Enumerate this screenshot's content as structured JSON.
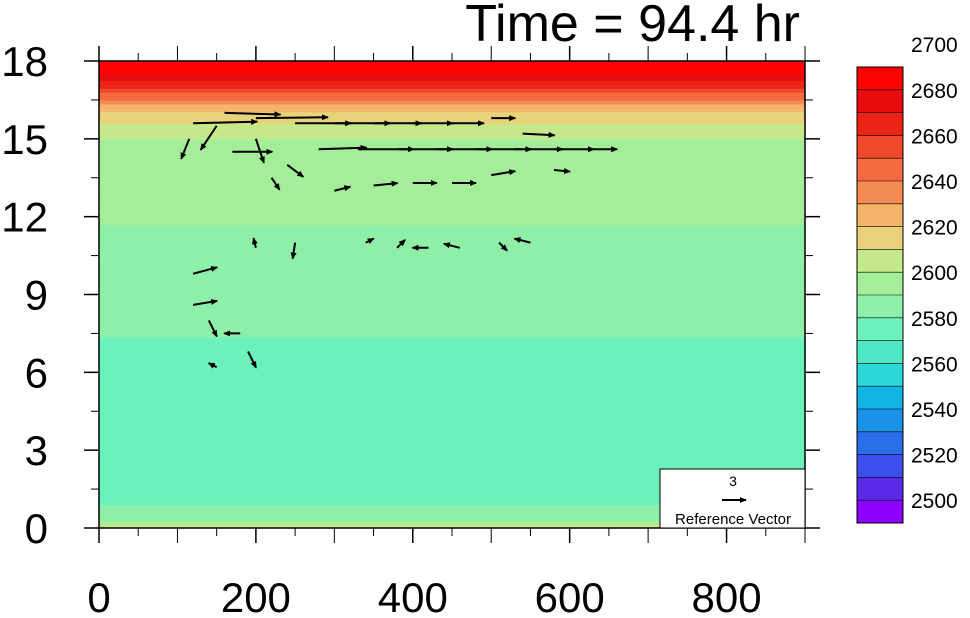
{
  "chart_data": {
    "type": "heatmap",
    "title": "Time = 94.4 hr",
    "xlabel": "",
    "ylabel": "",
    "xlim": [
      0,
      900
    ],
    "ylim": [
      0,
      18
    ],
    "x_ticks": [
      0,
      200,
      400,
      600,
      800
    ],
    "y_ticks": [
      0,
      3,
      6,
      9,
      12,
      15,
      18
    ],
    "colorbar": {
      "levels": [
        2500,
        2520,
        2540,
        2560,
        2580,
        2600,
        2620,
        2640,
        2660,
        2680,
        2700
      ],
      "label_levels": [
        "2500",
        "2520",
        "2540",
        "2560",
        "2580",
        "2600",
        "2620",
        "2640",
        "2660",
        "2680",
        "2700"
      ],
      "colors": [
        "#8b00ff",
        "#5a2ae8",
        "#3b4ef0",
        "#2a6ee8",
        "#1a92e8",
        "#10b4e4",
        "#2cd8d8",
        "#4ce8c4",
        "#6cf0bc",
        "#8ef0a8",
        "#a4ee9a",
        "#c4e88a",
        "#e8d27a",
        "#f4b46a",
        "#f48c54",
        "#f26a3e",
        "#f0482a",
        "#ec2416",
        "#e80c0c"
      ],
      "top_color": "#ff0000"
    },
    "field_profile": {
      "heights_km": [
        0,
        0.5,
        1.5,
        3,
        6,
        9,
        10.5,
        12,
        13.5,
        15,
        15.8,
        16.5,
        17,
        17.5,
        18
      ],
      "values": [
        2620,
        2600,
        2585,
        2588,
        2592,
        2598,
        2602,
        2606,
        2610,
        2615,
        2630,
        2655,
        2680,
        2700,
        2712
      ]
    },
    "reference_vector": {
      "magnitude": "3",
      "label": "Reference Vector"
    },
    "vectors": [
      {
        "x": 120,
        "y": 15.6,
        "u": 8,
        "v": 0.2
      },
      {
        "x": 160,
        "y": 16.0,
        "u": 7,
        "v": -0.2
      },
      {
        "x": 200,
        "y": 15.8,
        "u": 9,
        "v": 0.1
      },
      {
        "x": 250,
        "y": 15.6,
        "u": 7,
        "v": 0
      },
      {
        "x": 300,
        "y": 15.6,
        "u": 7,
        "v": 0
      },
      {
        "x": 350,
        "y": 15.6,
        "u": 6,
        "v": 0
      },
      {
        "x": 400,
        "y": 15.6,
        "u": 5,
        "v": 0
      },
      {
        "x": 450,
        "y": 15.6,
        "u": 4,
        "v": 0
      },
      {
        "x": 500,
        "y": 15.8,
        "u": 3,
        "v": 0
      },
      {
        "x": 280,
        "y": 14.6,
        "u": 6,
        "v": 0.2
      },
      {
        "x": 330,
        "y": 14.6,
        "u": 7,
        "v": 0
      },
      {
        "x": 380,
        "y": 14.6,
        "u": 7,
        "v": 0
      },
      {
        "x": 430,
        "y": 14.6,
        "u": 7,
        "v": 0
      },
      {
        "x": 480,
        "y": 14.6,
        "u": 7,
        "v": 0
      },
      {
        "x": 530,
        "y": 14.6,
        "u": 6,
        "v": 0
      },
      {
        "x": 580,
        "y": 14.6,
        "u": 5,
        "v": 0
      },
      {
        "x": 630,
        "y": 14.6,
        "u": 3,
        "v": 0
      },
      {
        "x": 540,
        "y": 15.2,
        "u": 4,
        "v": -0.2
      },
      {
        "x": 170,
        "y": 14.5,
        "u": 5,
        "v": 0
      },
      {
        "x": 150,
        "y": 15.5,
        "u": -2,
        "v": -3
      },
      {
        "x": 115,
        "y": 15.0,
        "u": -1,
        "v": -2.5
      },
      {
        "x": 200,
        "y": 15.0,
        "u": 1,
        "v": -3
      },
      {
        "x": 240,
        "y": 14.0,
        "u": 2,
        "v": -1.5
      },
      {
        "x": 220,
        "y": 13.5,
        "u": 1,
        "v": -1.5
      },
      {
        "x": 400,
        "y": 13.3,
        "u": 3,
        "v": 0
      },
      {
        "x": 450,
        "y": 13.3,
        "u": 3,
        "v": 0
      },
      {
        "x": 500,
        "y": 13.6,
        "u": 3,
        "v": 0.5
      },
      {
        "x": 350,
        "y": 13.2,
        "u": 3,
        "v": 0.3
      },
      {
        "x": 300,
        "y": 13.0,
        "u": 2,
        "v": 0.5
      },
      {
        "x": 580,
        "y": 13.8,
        "u": 2,
        "v": -0.2
      },
      {
        "x": 340,
        "y": 11.0,
        "u": 1,
        "v": 0.5
      },
      {
        "x": 380,
        "y": 10.8,
        "u": 1,
        "v": 1
      },
      {
        "x": 420,
        "y": 10.8,
        "u": -2,
        "v": 0
      },
      {
        "x": 460,
        "y": 10.8,
        "u": -2,
        "v": 0.5
      },
      {
        "x": 510,
        "y": 11.0,
        "u": 1,
        "v": -1
      },
      {
        "x": 550,
        "y": 11.0,
        "u": -2,
        "v": 0.5
      },
      {
        "x": 120,
        "y": 9.8,
        "u": 3,
        "v": 0.8
      },
      {
        "x": 120,
        "y": 8.6,
        "u": 3,
        "v": 0.5
      },
      {
        "x": 140,
        "y": 8.0,
        "u": 1,
        "v": -2
      },
      {
        "x": 180,
        "y": 7.5,
        "u": -2,
        "v": 0
      },
      {
        "x": 190,
        "y": 6.8,
        "u": 1,
        "v": -2
      },
      {
        "x": 150,
        "y": 6.2,
        "u": -1,
        "v": 0.5
      },
      {
        "x": 250,
        "y": 11.0,
        "u": -0.3,
        "v": -2
      },
      {
        "x": 200,
        "y": 10.8,
        "u": -0.3,
        "v": 1.2
      }
    ]
  }
}
